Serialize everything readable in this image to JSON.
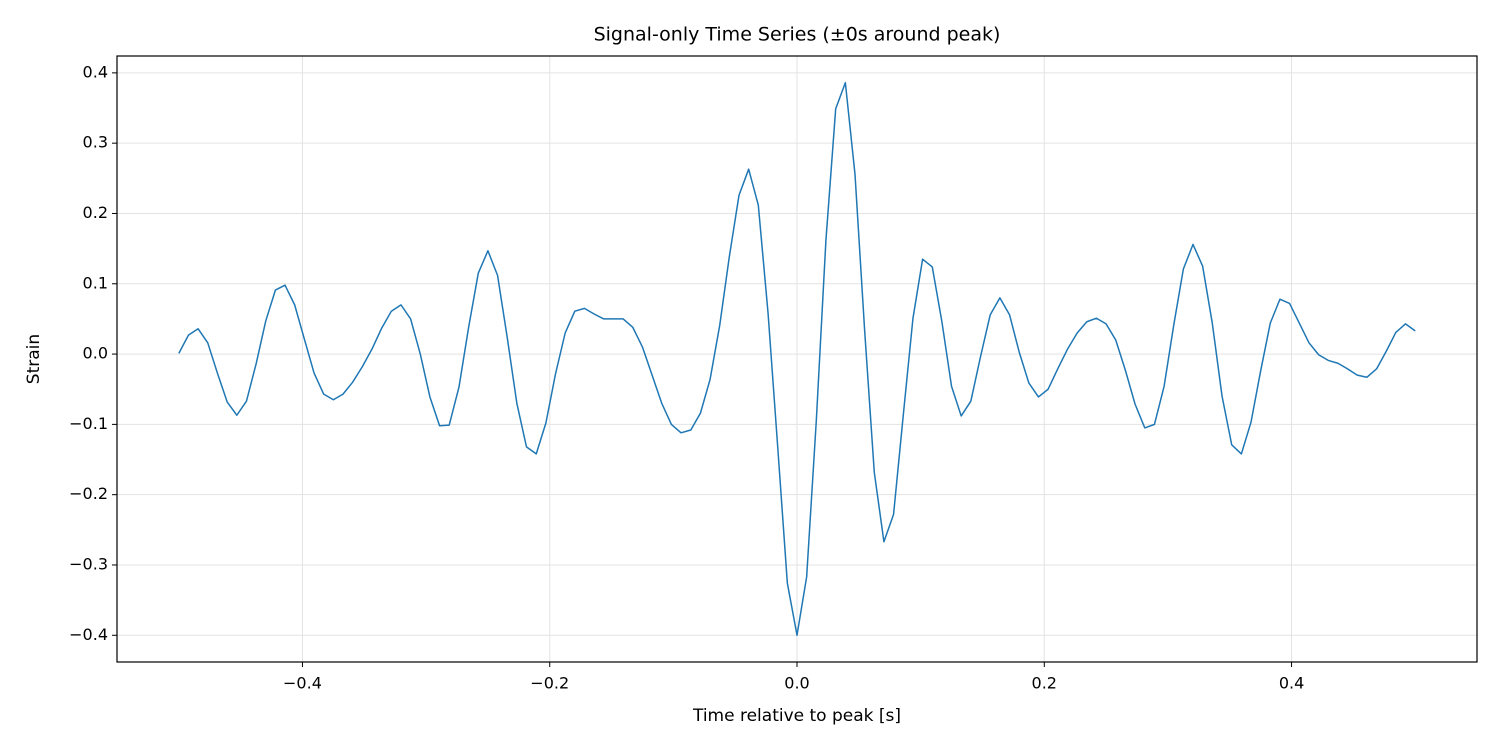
{
  "chart_data": {
    "type": "line",
    "title": "Signal-only Time Series (±0s around peak)",
    "x_label": "Time relative to peak [s]",
    "y_label": "Strain",
    "x": [
      -0.5,
      -0.4922,
      -0.4844,
      -0.4766,
      -0.4688,
      -0.4609,
      -0.4531,
      -0.4453,
      -0.4375,
      -0.4297,
      -0.4219,
      -0.4141,
      -0.4063,
      -0.3984,
      -0.3906,
      -0.3828,
      -0.375,
      -0.3672,
      -0.3594,
      -0.3516,
      -0.3438,
      -0.3359,
      -0.3281,
      -0.3203,
      -0.3125,
      -0.3047,
      -0.2969,
      -0.2891,
      -0.2813,
      -0.2734,
      -0.2656,
      -0.2578,
      -0.25,
      -0.2422,
      -0.2344,
      -0.2266,
      -0.2188,
      -0.2109,
      -0.2031,
      -0.1953,
      -0.1875,
      -0.1797,
      -0.1719,
      -0.1641,
      -0.1563,
      -0.1484,
      -0.1406,
      -0.1328,
      -0.125,
      -0.1172,
      -0.1094,
      -0.1016,
      -0.0938,
      -0.0859,
      -0.0781,
      -0.0703,
      -0.0625,
      -0.0547,
      -0.0469,
      -0.0391,
      -0.0313,
      -0.0234,
      -0.0156,
      -0.0078,
      0,
      0.0078,
      0.0156,
      0.0234,
      0.0313,
      0.0391,
      0.0469,
      0.0547,
      0.0625,
      0.0703,
      0.0781,
      0.0859,
      0.0938,
      0.1016,
      0.1094,
      0.1172,
      0.125,
      0.1328,
      0.1406,
      0.1484,
      0.1563,
      0.1641,
      0.1719,
      0.1797,
      0.1875,
      0.1953,
      0.2031,
      0.2109,
      0.2188,
      0.2266,
      0.2344,
      0.2422,
      0.25,
      0.2578,
      0.2656,
      0.2734,
      0.2813,
      0.2891,
      0.2969,
      0.3047,
      0.3125,
      0.3203,
      0.3281,
      0.3359,
      0.3438,
      0.3516,
      0.3594,
      0.3672,
      0.375,
      0.3828,
      0.3906,
      0.3984,
      0.4063,
      0.4141,
      0.4219,
      0.4297,
      0.4375,
      0.4453,
      0.4531,
      0.4609,
      0.4688,
      0.4766,
      0.4844,
      0.4922,
      0.5
    ],
    "series": [
      {
        "name": "Strain",
        "color": "#1f77b4",
        "values": [
          0.001,
          0.027,
          0.036,
          0.016,
          -0.027,
          -0.068,
          -0.087,
          -0.067,
          -0.014,
          0.047,
          0.091,
          0.098,
          0.07,
          0.021,
          -0.027,
          -0.057,
          -0.065,
          -0.057,
          -0.04,
          -0.018,
          0.007,
          0.037,
          0.061,
          0.07,
          0.05,
          0.0,
          -0.061,
          -0.102,
          -0.101,
          -0.047,
          0.038,
          0.115,
          0.147,
          0.112,
          0.024,
          -0.07,
          -0.132,
          -0.142,
          -0.098,
          -0.028,
          0.03,
          0.061,
          0.065,
          0.057,
          0.05,
          0.05,
          0.05,
          0.038,
          0.01,
          -0.03,
          -0.07,
          -0.1,
          -0.112,
          -0.108,
          -0.084,
          -0.036,
          0.041,
          0.139,
          0.226,
          0.263,
          0.212,
          0.058,
          -0.132,
          -0.326,
          -0.4,
          -0.317,
          -0.095,
          0.162,
          0.349,
          0.386,
          0.256,
          0.034,
          -0.168,
          -0.267,
          -0.228,
          -0.088,
          0.051,
          0.135,
          0.124,
          0.046,
          -0.046,
          -0.088,
          -0.067,
          -0.004,
          0.056,
          0.08,
          0.056,
          0.003,
          -0.041,
          -0.061,
          -0.05,
          -0.021,
          0.007,
          0.03,
          0.046,
          0.051,
          0.043,
          0.02,
          -0.023,
          -0.071,
          -0.105,
          -0.1,
          -0.046,
          0.041,
          0.121,
          0.156,
          0.125,
          0.044,
          -0.06,
          -0.129,
          -0.142,
          -0.097,
          -0.024,
          0.044,
          0.078,
          0.072,
          0.044,
          0.016,
          -0.001,
          -0.009,
          -0.013,
          -0.021,
          -0.03,
          -0.033,
          -0.021,
          0.004,
          0.031,
          0.043,
          0.033
        ]
      }
    ],
    "xlim": [
      -0.55,
      0.55
    ],
    "ylim": [
      -0.438,
      0.424
    ],
    "xticks": [
      {
        "value": -0.4,
        "label": "−0.4"
      },
      {
        "value": -0.2,
        "label": "−0.2"
      },
      {
        "value": 0,
        "label": "0.0"
      },
      0.2,
      0.4
    ],
    "yticks": [
      {
        "value": -0.4,
        "label": "−0.4"
      },
      {
        "value": -0.3,
        "label": "−0.3"
      },
      {
        "value": -0.2,
        "label": "−0.2"
      },
      {
        "value": -0.1,
        "label": "−0.1"
      },
      {
        "value": 0,
        "label": "0.0"
      },
      0.1,
      0.2,
      0.3,
      0.4
    ],
    "grid": true
  }
}
